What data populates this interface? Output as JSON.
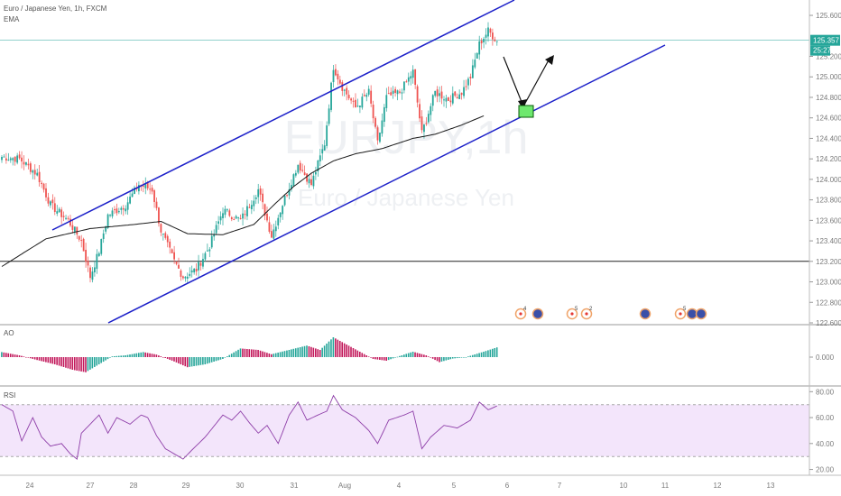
{
  "header": {
    "title": "Euro / Japanese Yen, 1h, FXCM",
    "indicator": "EMA",
    "watermark_symbol": "EURJPY,1h",
    "watermark_name": "Euro / Japanese Yen"
  },
  "price_badge": {
    "price": "125.357",
    "countdown": "25:27"
  },
  "panes": {
    "ao_label": "AO",
    "rsi_label": "RSI"
  },
  "colors": {
    "up": "#26a69a",
    "down": "#ef5350",
    "channel": "#1d21c9",
    "ema": "#1a1a1a",
    "ao_up": "#26a69a",
    "ao_down": "#c2185b",
    "rsi_line": "#8e3ea8",
    "rsi_band": "#f3e5fb",
    "badge": "#26a69a"
  },
  "events": [
    "4",
    "5",
    "2",
    "5"
  ],
  "chart_data": [
    {
      "type": "candlestick",
      "title": "Euro / Japanese Yen, 1h, FXCM",
      "x_ticks": [
        "24",
        "27",
        "28",
        "29",
        "30",
        "31",
        "Aug",
        "4",
        "5",
        "6",
        "7",
        "10",
        "11",
        "12",
        "13"
      ],
      "y_ticks": [
        "125.600",
        "125.200",
        "125.000",
        "124.800",
        "124.600",
        "124.400",
        "124.200",
        "124.000",
        "123.800",
        "123.600",
        "123.400",
        "123.200",
        "123.000",
        "122.800",
        "122.600"
      ],
      "ylim": [
        122.6,
        125.75
      ],
      "horizontal_line": 123.2,
      "last_price": 125.357,
      "close_path": [
        [
          0,
          124.22
        ],
        [
          8,
          124.2
        ],
        [
          16,
          124.05
        ],
        [
          22,
          123.75
        ],
        [
          30,
          123.6
        ],
        [
          36,
          123.4
        ],
        [
          40,
          123.05
        ],
        [
          44,
          123.3
        ],
        [
          48,
          123.65
        ],
        [
          56,
          123.75
        ],
        [
          62,
          123.95
        ],
        [
          68,
          123.9
        ],
        [
          72,
          123.5
        ],
        [
          78,
          123.2
        ],
        [
          82,
          123.05
        ],
        [
          88,
          123.12
        ],
        [
          94,
          123.35
        ],
        [
          100,
          123.7
        ],
        [
          108,
          123.6
        ],
        [
          116,
          123.9
        ],
        [
          122,
          123.45
        ],
        [
          128,
          123.82
        ],
        [
          134,
          124.15
        ],
        [
          140,
          123.95
        ],
        [
          146,
          124.35
        ],
        [
          150,
          125.1
        ],
        [
          154,
          124.9
        ],
        [
          160,
          124.7
        ],
        [
          166,
          124.85
        ],
        [
          170,
          124.35
        ],
        [
          174,
          124.8
        ],
        [
          180,
          124.85
        ],
        [
          186,
          125.05
        ],
        [
          190,
          124.45
        ],
        [
          196,
          124.85
        ],
        [
          202,
          124.78
        ],
        [
          208,
          124.85
        ],
        [
          212,
          125.0
        ],
        [
          216,
          125.32
        ],
        [
          220,
          125.45
        ],
        [
          224,
          125.35
        ]
      ],
      "ema_path": [
        [
          0,
          123.15
        ],
        [
          20,
          123.42
        ],
        [
          40,
          123.52
        ],
        [
          60,
          123.56
        ],
        [
          72,
          123.59
        ],
        [
          84,
          123.47
        ],
        [
          100,
          123.46
        ],
        [
          114,
          123.56
        ],
        [
          124,
          123.77
        ],
        [
          132,
          123.93
        ],
        [
          140,
          124.06
        ],
        [
          150,
          124.18
        ],
        [
          160,
          124.25
        ],
        [
          172,
          124.3
        ],
        [
          186,
          124.4
        ],
        [
          196,
          124.44
        ],
        [
          208,
          124.53
        ],
        [
          218,
          124.62
        ]
      ]
    },
    {
      "type": "bar",
      "title": "AO",
      "y_ticks": [
        "0.000"
      ],
      "values_path": [
        [
          0,
          0.14
        ],
        [
          8,
          0.05
        ],
        [
          16,
          -0.08
        ],
        [
          24,
          -0.2
        ],
        [
          32,
          -0.35
        ],
        [
          38,
          -0.42
        ],
        [
          44,
          -0.2
        ],
        [
          50,
          0.02
        ],
        [
          56,
          0.05
        ],
        [
          64,
          0.14
        ],
        [
          70,
          0.07
        ],
        [
          78,
          -0.12
        ],
        [
          84,
          -0.28
        ],
        [
          92,
          -0.2
        ],
        [
          100,
          -0.05
        ],
        [
          108,
          0.24
        ],
        [
          116,
          0.2
        ],
        [
          122,
          0.08
        ],
        [
          130,
          0.2
        ],
        [
          138,
          0.32
        ],
        [
          144,
          0.2
        ],
        [
          150,
          0.55
        ],
        [
          156,
          0.35
        ],
        [
          162,
          0.15
        ],
        [
          168,
          -0.05
        ],
        [
          174,
          -0.1
        ],
        [
          180,
          0.03
        ],
        [
          186,
          0.15
        ],
        [
          192,
          0.05
        ],
        [
          198,
          -0.14
        ],
        [
          204,
          -0.04
        ],
        [
          210,
          0.0
        ],
        [
          218,
          0.15
        ],
        [
          224,
          0.27
        ]
      ]
    },
    {
      "type": "line",
      "title": "RSI",
      "y_ticks": [
        "80.00",
        "60.00",
        "40.00",
        "20.00"
      ],
      "ylim": [
        19,
        83
      ],
      "band": [
        30,
        70
      ],
      "values_path": [
        [
          0,
          70
        ],
        [
          5,
          65
        ],
        [
          9,
          42
        ],
        [
          14,
          60
        ],
        [
          18,
          45
        ],
        [
          22,
          38
        ],
        [
          27,
          40
        ],
        [
          31,
          32
        ],
        [
          34,
          28
        ],
        [
          36,
          48
        ],
        [
          40,
          55
        ],
        [
          44,
          62
        ],
        [
          48,
          48
        ],
        [
          52,
          60
        ],
        [
          58,
          55
        ],
        [
          63,
          62
        ],
        [
          66,
          60
        ],
        [
          70,
          46
        ],
        [
          74,
          36
        ],
        [
          78,
          32
        ],
        [
          82,
          28
        ],
        [
          86,
          35
        ],
        [
          92,
          45
        ],
        [
          100,
          62
        ],
        [
          104,
          58
        ],
        [
          108,
          65
        ],
        [
          112,
          56
        ],
        [
          116,
          48
        ],
        [
          120,
          54
        ],
        [
          125,
          40
        ],
        [
          130,
          62
        ],
        [
          134,
          72
        ],
        [
          138,
          58
        ],
        [
          143,
          62
        ],
        [
          147,
          65
        ],
        [
          150,
          77
        ],
        [
          154,
          66
        ],
        [
          160,
          60
        ],
        [
          166,
          50
        ],
        [
          170,
          40
        ],
        [
          175,
          58
        ],
        [
          182,
          62
        ],
        [
          186,
          65
        ],
        [
          190,
          36
        ],
        [
          194,
          45
        ],
        [
          200,
          54
        ],
        [
          206,
          52
        ],
        [
          212,
          58
        ],
        [
          216,
          72
        ],
        [
          220,
          66
        ],
        [
          224,
          69
        ]
      ]
    }
  ]
}
